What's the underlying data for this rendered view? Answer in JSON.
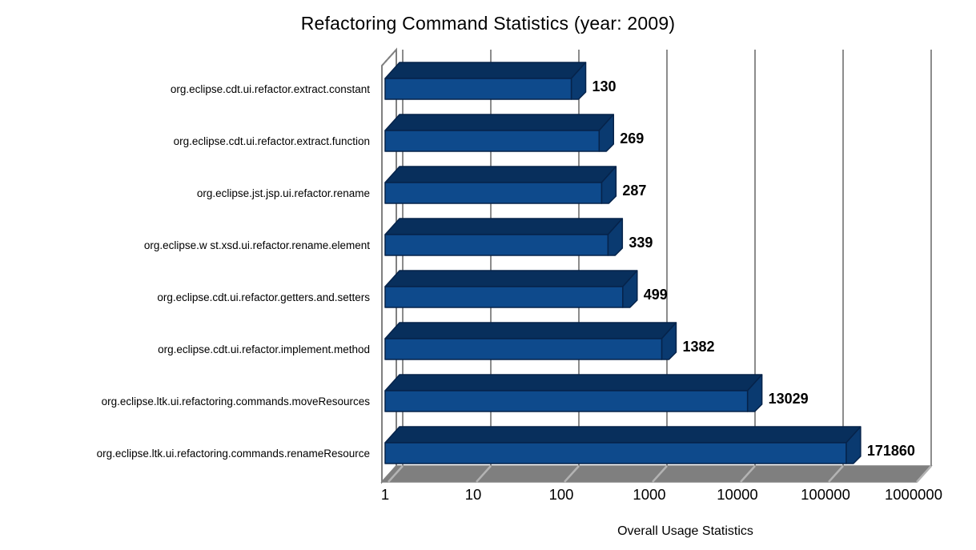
{
  "title": "Refactoring Command Statistics (year: 2009)",
  "chart_data": {
    "type": "bar",
    "style": "3d",
    "orientation": "horizontal",
    "x_scale": "log",
    "title": "Refactoring Command Statistics (year: 2009)",
    "xlabel": "Overall Usage Statistics",
    "ylabel": "",
    "xlim": [
      1,
      1000000
    ],
    "grid": true,
    "legend": false,
    "categories": [
      "org.eclipse.cdt.ui.refactor.extract.constant",
      "org.eclipse.cdt.ui.refactor.extract.function",
      "org.eclipse.jst.jsp.ui.refactor.rename",
      "org.eclipse.w st.xsd.ui.refactor.rename.element",
      "org.eclipse.cdt.ui.refactor.getters.and.setters",
      "org.eclipse.cdt.ui.refactor.implement.method",
      "org.eclipse.ltk.ui.refactoring.commands.moveResources",
      "org.eclipse.ltk.ui.refactoring.commands.renameResource"
    ],
    "values": [
      130,
      269,
      287,
      339,
      499,
      1382,
      13029,
      171860
    ],
    "value_labels": [
      "130",
      "269",
      "287",
      "339",
      "499",
      "1382",
      "13029",
      "171860"
    ],
    "x_tick_labels": [
      "1",
      "10",
      "100",
      "1000",
      "10000",
      "100000",
      "1000000"
    ],
    "colors": {
      "bar_front": "#0E4A8C",
      "bar_top": "#082F5C",
      "bar_end": "#0A3A70",
      "bar_outline": "#06234A",
      "gridline": "#8C8C8C",
      "wall_outline": "#808080",
      "floor_fill": "#7F7F7F",
      "floor_hatch": "#B3B3B3",
      "text": "#000000",
      "background": "#FFFFFF"
    }
  }
}
